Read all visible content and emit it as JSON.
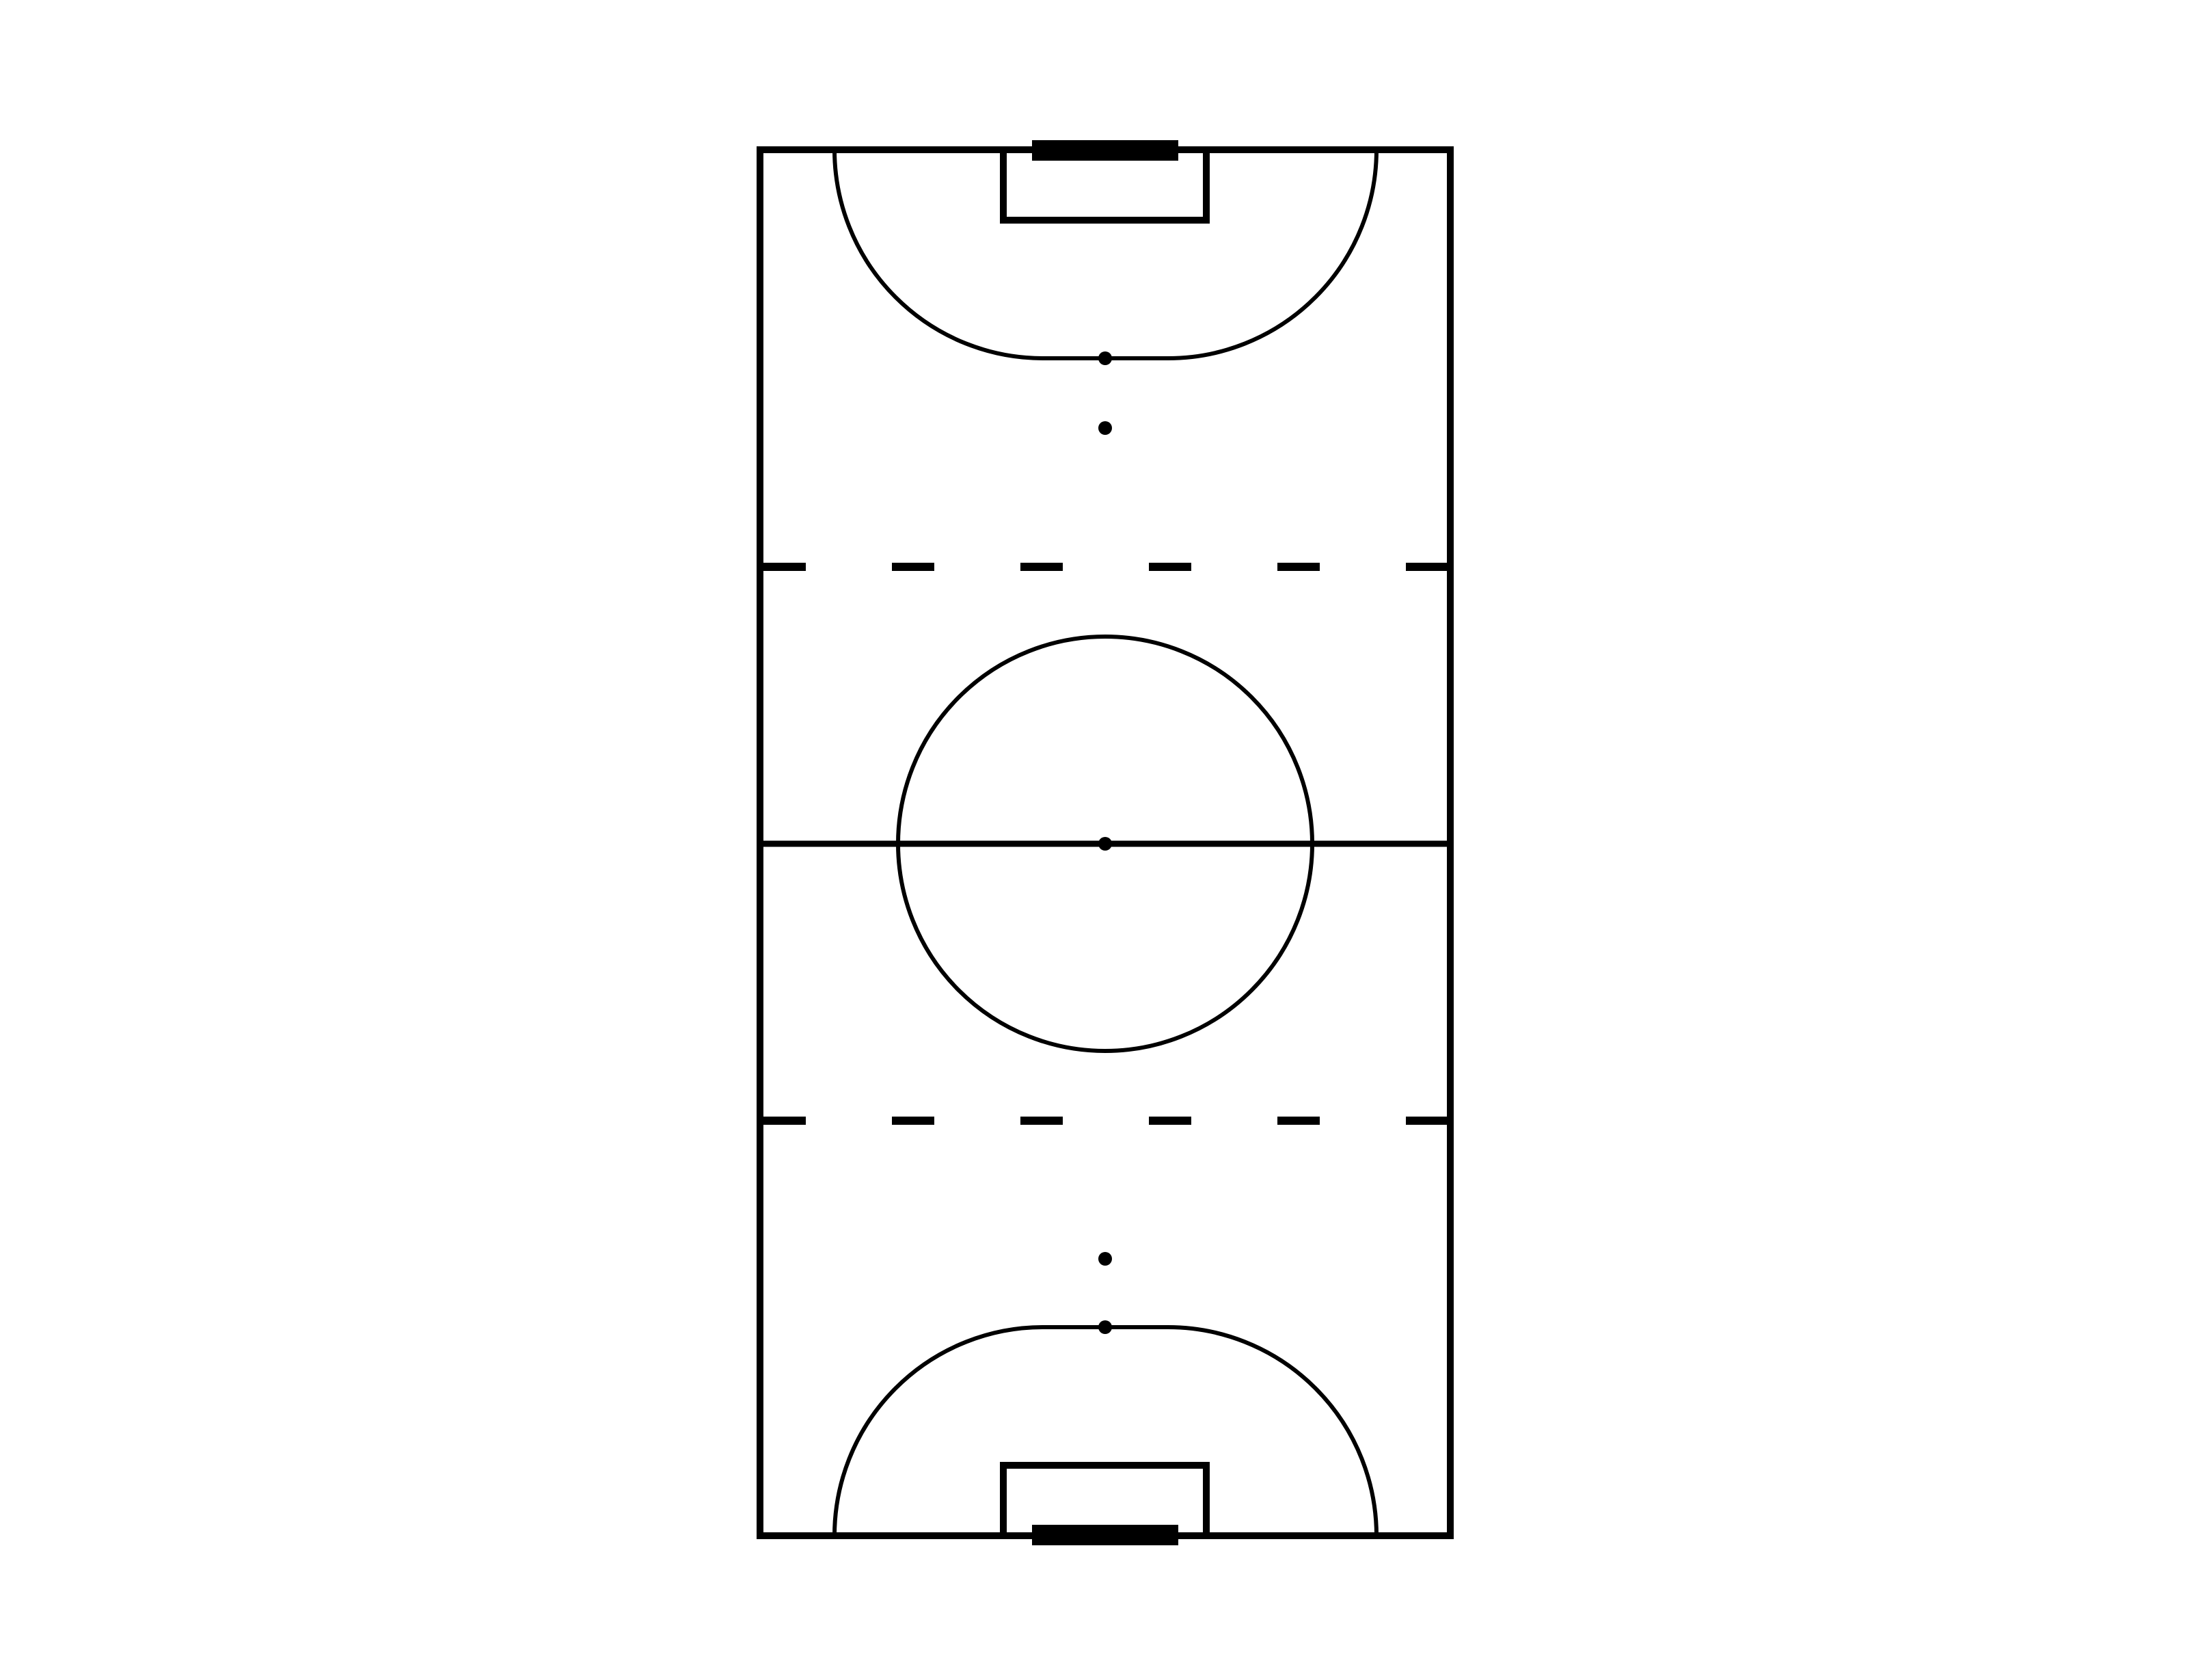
{
  "colors": {
    "background": "#ffffff",
    "line": "#000000"
  },
  "diagram": {
    "type": "futsal-pitch-outline",
    "orientation": "vertical",
    "elements": [
      "outer-boundary",
      "halfway-line",
      "center-circle",
      "center-spot",
      "substitution-dashed-lines",
      "penalty-areas",
      "goal-areas",
      "goals",
      "penalty-spots",
      "second-penalty-spots"
    ]
  }
}
